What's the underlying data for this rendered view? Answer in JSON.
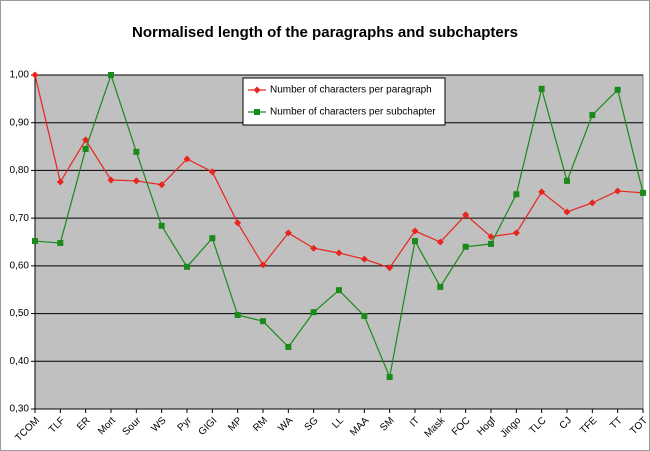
{
  "chart_data": {
    "type": "line",
    "title": "Normalised length of the paragraphs and subchapters",
    "categories": [
      "TCOM",
      "TLF",
      "ER",
      "Mort",
      "Sour",
      "WS",
      "Pyr",
      "GIGI",
      "MP",
      "RM",
      "WA",
      "SG",
      "LL",
      "MAA",
      "SM",
      "IT",
      "Mask",
      "FOC",
      "Hogf",
      "Jingo",
      "TLC",
      "CJ",
      "TFE",
      "TT",
      "TOT"
    ],
    "series": [
      {
        "name": "Number of characters per paragraph",
        "color": "#e8251f",
        "marker": "diamond",
        "values": [
          1.0,
          0.776,
          0.864,
          0.78,
          0.778,
          0.77,
          0.824,
          0.797,
          0.69,
          0.602,
          0.669,
          0.637,
          0.627,
          0.614,
          0.596,
          0.673,
          0.65,
          0.707,
          0.661,
          0.669,
          0.755,
          0.713,
          0.732,
          0.757,
          0.753
        ]
      },
      {
        "name": "Number of characters per subchapter",
        "color": "#1a8a1a",
        "marker": "square",
        "values": [
          0.652,
          0.648,
          0.845,
          1.0,
          0.839,
          0.684,
          0.598,
          0.658,
          0.497,
          0.484,
          0.43,
          0.503,
          0.549,
          0.495,
          0.367,
          0.652,
          0.556,
          0.64,
          0.646,
          0.75,
          0.971,
          0.778,
          0.916,
          0.969,
          0.753
        ]
      }
    ],
    "ylim": [
      0.3,
      1.0
    ],
    "yticks": [
      {
        "value": 0.3,
        "label": "0,30"
      },
      {
        "value": 0.4,
        "label": "0,40"
      },
      {
        "value": 0.5,
        "label": "0,50"
      },
      {
        "value": 0.6,
        "label": "0,60"
      },
      {
        "value": 0.7,
        "label": "0,70"
      },
      {
        "value": 0.8,
        "label": "0,80"
      },
      {
        "value": 0.9,
        "label": "0,90"
      },
      {
        "value": 1.0,
        "label": "1,00"
      }
    ],
    "grid": true,
    "legend": "top"
  }
}
